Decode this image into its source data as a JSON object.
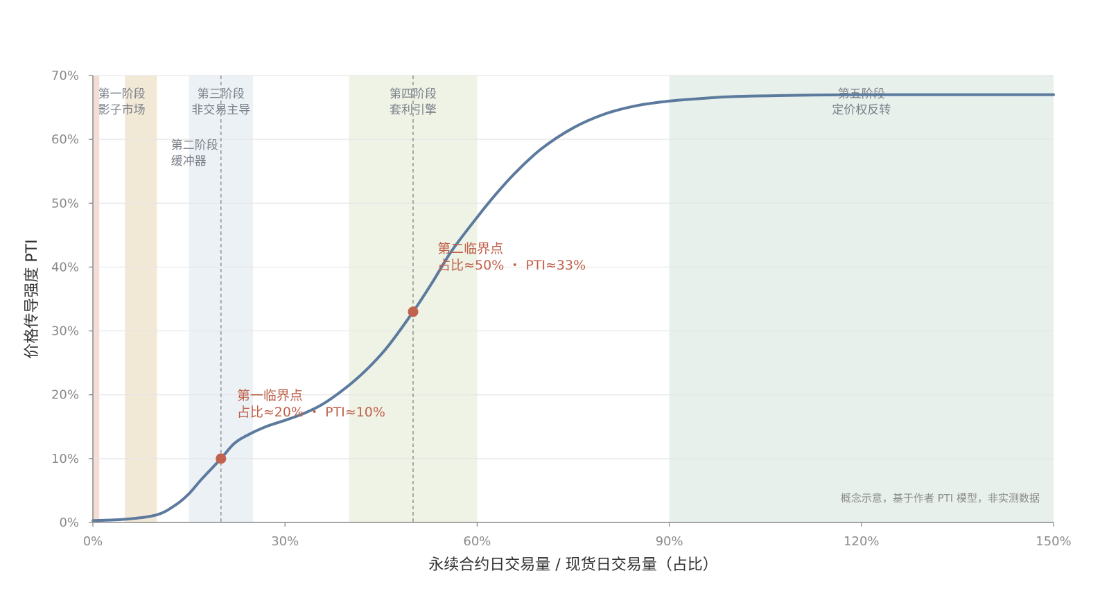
{
  "chart_data": {
    "type": "line",
    "xlabel": "永续合约日交易量 / 现货日交易量（占比）",
    "ylabel": "价格传导强度 PTI",
    "xlim": [
      0,
      150
    ],
    "ylim": [
      0,
      70
    ],
    "x_ticks": [
      0,
      30,
      60,
      90,
      120,
      150
    ],
    "x_tick_labels": [
      "0%",
      "30%",
      "60%",
      "90%",
      "120%",
      "150%"
    ],
    "y_ticks": [
      0,
      10,
      20,
      30,
      40,
      50,
      60,
      70
    ],
    "y_tick_labels": [
      "0%",
      "10%",
      "20%",
      "30%",
      "40%",
      "50%",
      "60%",
      "70%"
    ],
    "grid": true,
    "series": [
      {
        "color": "#5b7a9d",
        "points": [
          [
            0,
            0.3
          ],
          [
            5,
            0.5
          ],
          [
            10,
            1.2
          ],
          [
            13,
            2.8
          ],
          [
            15,
            4.5
          ],
          [
            17,
            6.8
          ],
          [
            20,
            10
          ],
          [
            22,
            12.3
          ],
          [
            24,
            13.6
          ],
          [
            27,
            15
          ],
          [
            30,
            16
          ],
          [
            33,
            17.1
          ],
          [
            36,
            18.6
          ],
          [
            40,
            21.5
          ],
          [
            43,
            24.2
          ],
          [
            46,
            27.5
          ],
          [
            50,
            33
          ],
          [
            53,
            37.6
          ],
          [
            56,
            42.5
          ],
          [
            60,
            47.8
          ],
          [
            63,
            51.5
          ],
          [
            66,
            54.8
          ],
          [
            70,
            58.5
          ],
          [
            75,
            61.8
          ],
          [
            80,
            64
          ],
          [
            85,
            65.3
          ],
          [
            90,
            66
          ],
          [
            95,
            66.4
          ],
          [
            100,
            66.7
          ],
          [
            110,
            66.9
          ],
          [
            120,
            67
          ],
          [
            135,
            67
          ],
          [
            150,
            67
          ]
        ]
      }
    ],
    "phases": [
      {
        "x0": 0,
        "x1": 1,
        "color": "#f3ddd5",
        "lines": [
          "第一阶段",
          "影子市场"
        ]
      },
      {
        "x0": 5,
        "x1": 10,
        "color": "#f2e8d6",
        "lines": []
      },
      {
        "x0": 15,
        "x1": 25,
        "color": "#ecf1f6",
        "lines": [
          "第三阶段",
          "非交易主导"
        ]
      },
      {
        "x0": 40,
        "x1": 60,
        "color": "#eff3e6",
        "lines": [
          "第四阶段",
          "套利引擎"
        ]
      },
      {
        "x0": 90,
        "x1": 150,
        "color": "#e7f0eb",
        "lines": [
          "第五阶段",
          "定价权反转"
        ]
      }
    ],
    "phase2_lines": [
      "第二阶段",
      "缓冲器"
    ],
    "critical_points": [
      {
        "x": 20,
        "y": 10,
        "lines": [
          "第一临界点",
          "占比≈20% ・ PTI≈10%"
        ]
      },
      {
        "x": 50,
        "y": 33,
        "lines": [
          "第二临界点",
          "占比≈50% ・ PTI≈33%"
        ]
      }
    ],
    "note": "概念示意，基于作者 PTI 模型，非实测数据",
    "colors": {
      "line": "#5b7a9d",
      "point": "#c0624c",
      "annotation": "#c0624c",
      "grid": "#e6e6e6",
      "axis": "#8a8a8a"
    }
  }
}
